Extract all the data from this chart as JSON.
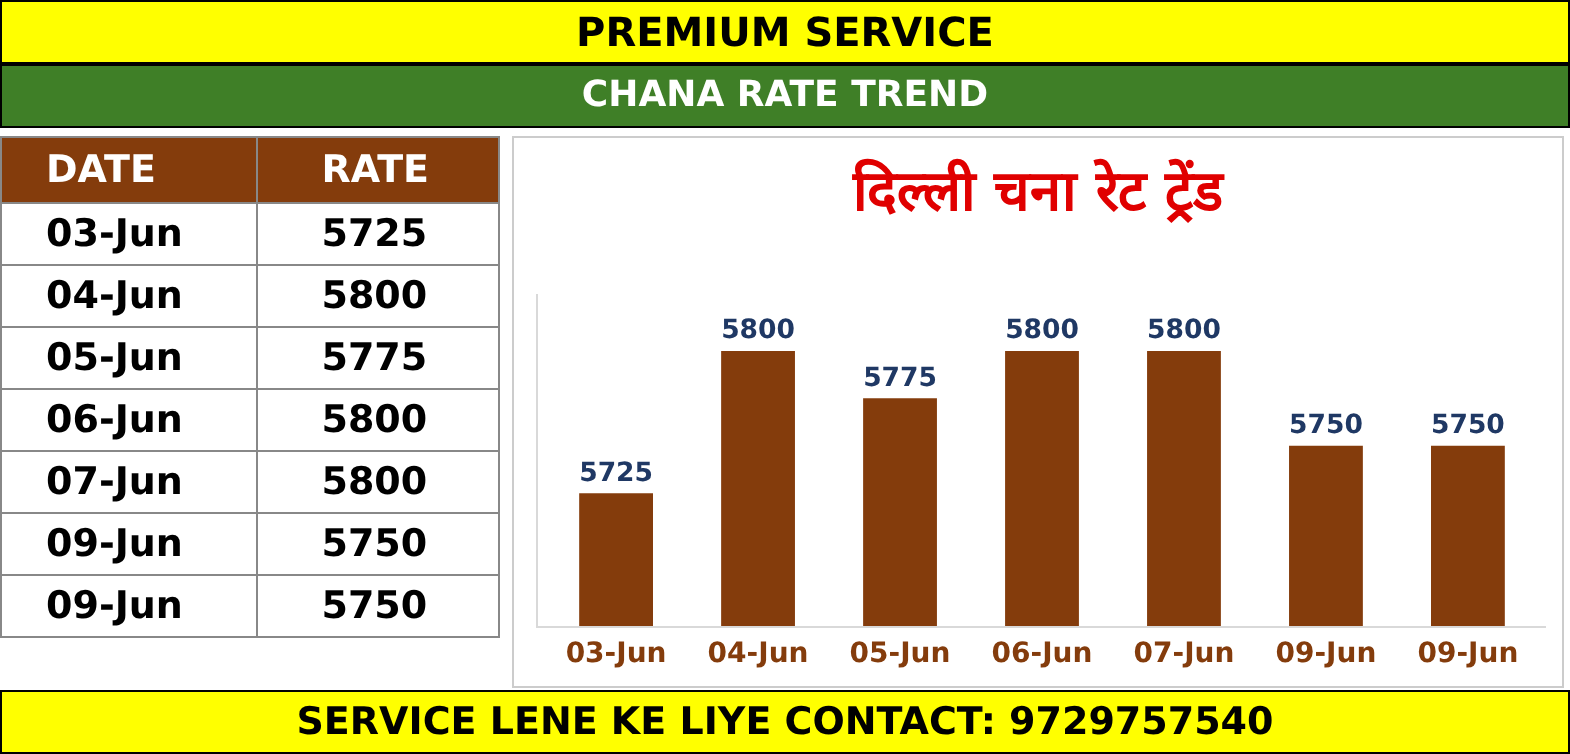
{
  "chart_data": {
    "type": "bar",
    "title": "दिल्ली चना रेट ट्रेंड",
    "subtitle": "CHANA RATE TREND",
    "categories": [
      "03-Jun",
      "04-Jun",
      "05-Jun",
      "06-Jun",
      "07-Jun",
      "09-Jun",
      "09-Jun"
    ],
    "values": [
      5725,
      5800,
      5775,
      5800,
      5800,
      5750,
      5750
    ],
    "value_labels": [
      "5725",
      "5800",
      "5775",
      "5800",
      "5800",
      "5750",
      "5750"
    ],
    "color": "#843c0c",
    "ylim": [
      5655,
      5830
    ],
    "annotations": [
      "PREMIUM SERVICE",
      "SERVICE LENE KE LIYE CONTACT: 9729757540",
      "DATE",
      "RATE"
    ]
  }
}
